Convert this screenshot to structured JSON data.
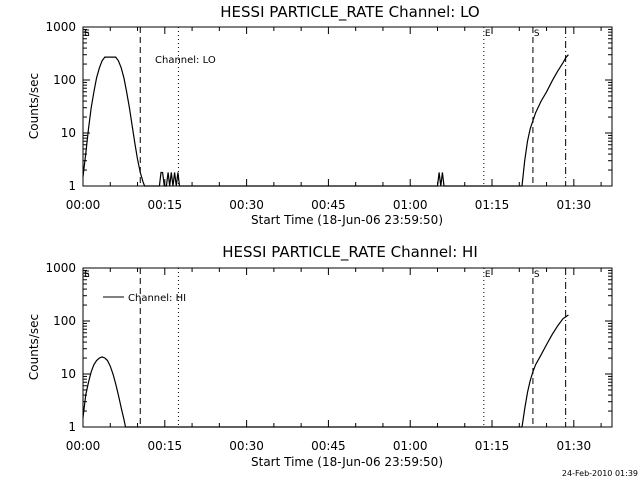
{
  "chart_data": [
    {
      "type": "line",
      "title": "HESSI PARTICLE_RATE Channel: LO",
      "xlabel": "Start Time (18-Jun-06 23:59:50)",
      "ylabel": "Counts/sec",
      "yscale": "log",
      "ylim": [
        1,
        1000
      ],
      "xlim_minutes": [
        0,
        97
      ],
      "x_tick_labels": [
        "00:00",
        "00:15",
        "00:30",
        "00:45",
        "01:00",
        "01:15",
        "01:30"
      ],
      "y_tick_labels": [
        "1",
        "10",
        "100",
        "1000"
      ],
      "legend": "Channel: LO",
      "markers": [
        {
          "label": "E",
          "minute": 0,
          "style": "solid"
        },
        {
          "label": "S",
          "minute": 0,
          "style": "solid"
        },
        {
          "label": "",
          "minute": 10.5,
          "style": "dashed"
        },
        {
          "label": "",
          "minute": 17.5,
          "style": "dotted"
        },
        {
          "label": "E",
          "minute": 73.5,
          "style": "dotted"
        },
        {
          "label": "S",
          "minute": 82.5,
          "style": "dashed"
        },
        {
          "label": "",
          "minute": 88.5,
          "style": "dashdot"
        }
      ],
      "series": [
        {
          "name": "Channel: LO",
          "points": [
            [
              0,
              1.5
            ],
            [
              0.5,
              4
            ],
            [
              1,
              12
            ],
            [
              1.5,
              30
            ],
            [
              2,
              60
            ],
            [
              2.5,
              110
            ],
            [
              3,
              170
            ],
            [
              3.5,
              230
            ],
            [
              4,
              270
            ],
            [
              5,
              270
            ],
            [
              6,
              270
            ],
            [
              6.5,
              230
            ],
            [
              7,
              170
            ],
            [
              7.5,
              110
            ],
            [
              8,
              60
            ],
            [
              8.5,
              30
            ],
            [
              9,
              14
            ],
            [
              9.5,
              6.5
            ],
            [
              10,
              3.2
            ],
            [
              10.5,
              1.8
            ],
            [
              11,
              1.2
            ],
            [
              11.3,
              1
            ],
            [
              14,
              1
            ],
            [
              14.3,
              1.8
            ],
            [
              14.6,
              1.8
            ],
            [
              14.9,
              1
            ],
            [
              15.3,
              1
            ],
            [
              15.6,
              1.8
            ],
            [
              15.9,
              1
            ],
            [
              16.2,
              1.8
            ],
            [
              16.5,
              1
            ],
            [
              16.8,
              1.8
            ],
            [
              17.1,
              1
            ],
            [
              17.4,
              1.8
            ],
            [
              17.7,
              1
            ],
            [
              65,
              1
            ],
            [
              65.3,
              1.8
            ],
            [
              65.6,
              1
            ],
            [
              65.9,
              1.8
            ],
            [
              66.2,
              1
            ],
            [
              80.5,
              1
            ],
            [
              81,
              3
            ],
            [
              81.5,
              7
            ],
            [
              82,
              12
            ],
            [
              82.5,
              17
            ],
            [
              83,
              24
            ],
            [
              84,
              40
            ],
            [
              85,
              60
            ],
            [
              86,
              95
            ],
            [
              87,
              145
            ],
            [
              88,
              210
            ],
            [
              88.5,
              260
            ],
            [
              89,
              300
            ]
          ]
        }
      ]
    },
    {
      "type": "line",
      "title": "HESSI PARTICLE_RATE Channel: HI",
      "xlabel": "Start Time (18-Jun-06 23:59:50)",
      "ylabel": "Counts/sec",
      "yscale": "log",
      "ylim": [
        1,
        1000
      ],
      "xlim_minutes": [
        0,
        97
      ],
      "x_tick_labels": [
        "00:00",
        "00:15",
        "00:30",
        "00:45",
        "01:00",
        "01:15",
        "01:30"
      ],
      "y_tick_labels": [
        "1",
        "10",
        "100",
        "1000"
      ],
      "legend": "Channel: HI",
      "markers": [
        {
          "label": "E",
          "minute": 0,
          "style": "solid"
        },
        {
          "label": "S",
          "minute": 0,
          "style": "solid"
        },
        {
          "label": "",
          "minute": 10.5,
          "style": "dashed"
        },
        {
          "label": "",
          "minute": 17.5,
          "style": "dotted"
        },
        {
          "label": "E",
          "minute": 73.5,
          "style": "dotted"
        },
        {
          "label": "S",
          "minute": 82.5,
          "style": "dashed"
        },
        {
          "label": "",
          "minute": 88.5,
          "style": "dashdot"
        }
      ],
      "series": [
        {
          "name": "Channel: HI",
          "points": [
            [
              0,
              1.5
            ],
            [
              0.5,
              4
            ],
            [
              1,
              7
            ],
            [
              1.5,
              11
            ],
            [
              2,
              15
            ],
            [
              2.5,
              18
            ],
            [
              3,
              20
            ],
            [
              3.5,
              21
            ],
            [
              4,
              20
            ],
            [
              4.5,
              18
            ],
            [
              5,
              14
            ],
            [
              5.5,
              10
            ],
            [
              6,
              6.5
            ],
            [
              6.5,
              4
            ],
            [
              7,
              2.3
            ],
            [
              7.5,
              1.4
            ],
            [
              7.8,
              1
            ],
            [
              80.5,
              1
            ],
            [
              81,
              2.2
            ],
            [
              81.5,
              4.5
            ],
            [
              82,
              7.5
            ],
            [
              82.5,
              11
            ],
            [
              83,
              15
            ],
            [
              84,
              23
            ],
            [
              85,
              36
            ],
            [
              86,
              55
            ],
            [
              87,
              80
            ],
            [
              88,
              110
            ],
            [
              89,
              130
            ]
          ]
        }
      ]
    }
  ],
  "footer": {
    "timestamp": "24-Feb-2010 01:39"
  }
}
